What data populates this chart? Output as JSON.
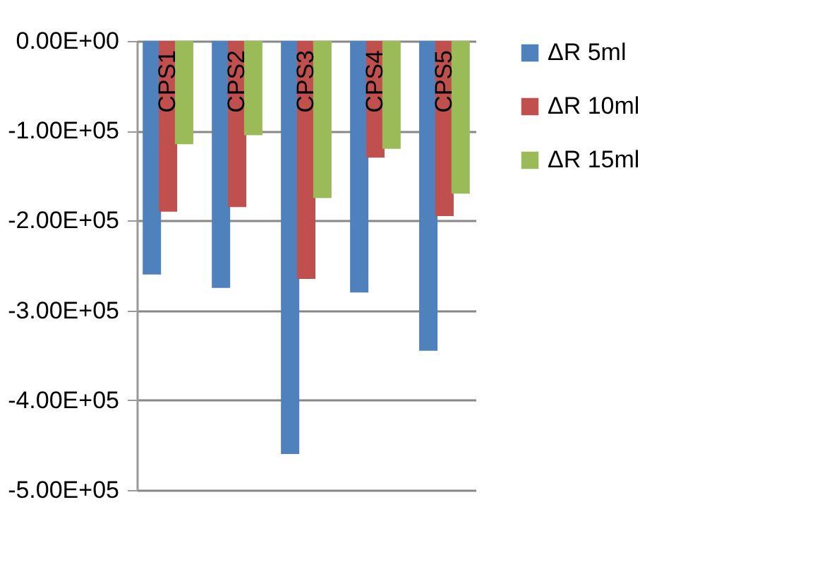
{
  "chart_data": {
    "type": "bar",
    "categories": [
      "CPS1",
      "CPS2",
      "CPS3",
      "CPS4",
      "CPS5"
    ],
    "series": [
      {
        "name": "ΔR 5ml",
        "color": "#4f81bd",
        "values": [
          -260000,
          -275000,
          -460000,
          -280000,
          -345000
        ]
      },
      {
        "name": "ΔR 10ml",
        "color": "#c0504d",
        "values": [
          -190000,
          -185000,
          -265000,
          -130000,
          -195000
        ]
      },
      {
        "name": "ΔR 15ml",
        "color": "#9bbb59",
        "values": [
          -115000,
          -105000,
          -175000,
          -120000,
          -170000
        ]
      }
    ],
    "ylim": [
      -500000,
      0
    ],
    "yticks": [
      {
        "value": 0,
        "label": "0.00E+00"
      },
      {
        "value": -100000,
        "label": "-1.00E+05"
      },
      {
        "value": -200000,
        "label": "-2.00E+05"
      },
      {
        "value": -300000,
        "label": "-3.00E+05"
      },
      {
        "value": -400000,
        "label": "-4.00E+05"
      },
      {
        "value": -500000,
        "label": "-5.00E+05"
      }
    ],
    "grid": "y",
    "legend": "right"
  }
}
